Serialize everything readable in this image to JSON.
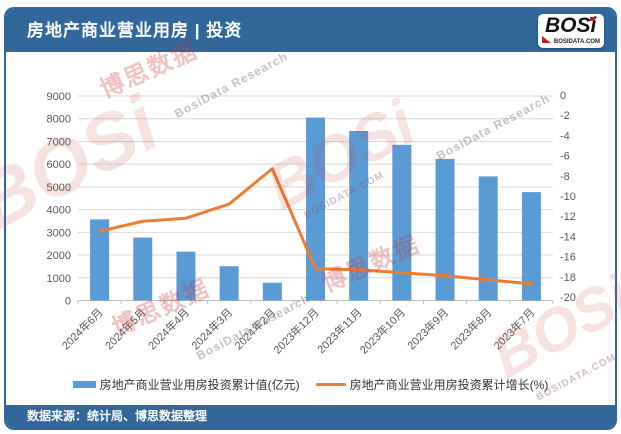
{
  "header": {
    "title": "房地产商业营业用房 | 投资"
  },
  "logo": {
    "brand": "BOSi",
    "domain": "BOSIDATA.COM"
  },
  "watermark": {
    "brand": "BOSi",
    "cn": "博思数据",
    "en": "BosiData Research",
    "domain": "BOSIDATA.COM"
  },
  "footer": {
    "source": "数据来源：统计局、博思数据整理"
  },
  "colors": {
    "header_blue": "#31679B",
    "bar_blue": "#5B9BD5",
    "line_orange": "#ED7D31",
    "grid": "#D9D9D9",
    "axis_line": "#BFBFBF",
    "axis_text": "#595959",
    "watermark_red": "#C00000"
  },
  "chart_data": {
    "type": "bar",
    "subtype": "bar+line combo, dual axis",
    "categories": [
      "2024年6月",
      "2024年5月",
      "2024年4月",
      "2024年3月",
      "2024年2月",
      "2023年12月",
      "2023年11月",
      "2023年10月",
      "2023年9月",
      "2023年8月",
      "2023年7月"
    ],
    "series": [
      {
        "name": "房地产商业营业用房投资累计值(亿元)",
        "type": "bar",
        "axis": "left",
        "color": "#5B9BD5",
        "values": [
          3570,
          2770,
          2150,
          1510,
          780,
          8050,
          7460,
          6850,
          6230,
          5460,
          4770
        ]
      },
      {
        "name": "房地产商业营业用房投资累计增长(%)",
        "type": "line",
        "axis": "right",
        "color": "#ED7D31",
        "values": [
          -13.5,
          -12.5,
          -12.2,
          -10.8,
          -7.3,
          -17.2,
          -17.3,
          -17.6,
          -17.9,
          -18.3,
          -18.7
        ]
      }
    ],
    "left_axis": {
      "min": 0,
      "max": 9000,
      "step": 1000
    },
    "right_axis": {
      "min": -20,
      "max": 0,
      "step": 2
    },
    "grid": true,
    "legend_position": "bottom",
    "x_label_rotation": -45
  }
}
